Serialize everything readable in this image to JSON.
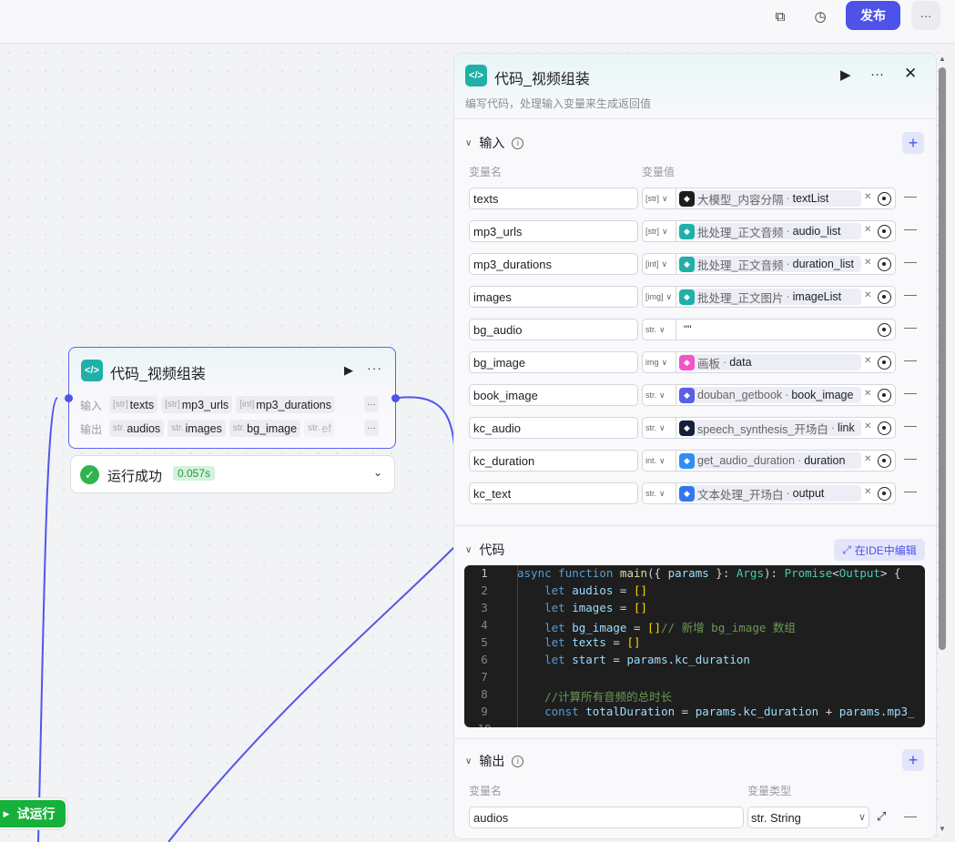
{
  "topbar": {
    "publish_label": "发布",
    "icons": [
      "copy-icon",
      "history-icon",
      "more-icon"
    ]
  },
  "node": {
    "title": "代码_视频组装",
    "input_label": "输入",
    "output_label": "输出",
    "inputs": [
      {
        "type": "[str]",
        "name": "texts"
      },
      {
        "type": "[str]",
        "name": "mp3_urls"
      },
      {
        "type": "[int]",
        "name": "mp3_durations"
      }
    ],
    "outputs": [
      {
        "type": "str.",
        "name": "audios"
      },
      {
        "type": "str.",
        "name": "images"
      },
      {
        "type": "str.",
        "name": "bg_image"
      },
      {
        "type": "str.",
        "name": "ef"
      }
    ],
    "status": {
      "text": "运行成功",
      "time": "0.057s"
    }
  },
  "trial_run_label": "试运行",
  "panel": {
    "title": "代码_视频组装",
    "description": "编写代码，处理输入变量来生成返回值",
    "input_section": {
      "title": "输入",
      "col_name": "变量名",
      "col_value": "变量值",
      "rows": [
        {
          "name": "texts",
          "type": "[str]",
          "node": "大模型_内容分隔",
          "var": "textList",
          "icon_color": "#1c1c1c"
        },
        {
          "name": "mp3_urls",
          "type": "[str]",
          "node": "批处理_正文音频",
          "var": "audio_list",
          "icon_color": "#1fb0a8"
        },
        {
          "name": "mp3_durations",
          "type": "[int]",
          "node": "批处理_正文音频",
          "var": "duration_list",
          "icon_color": "#1fb0a8"
        },
        {
          "name": "images",
          "type": "[img]",
          "node": "批处理_正文图片",
          "var": "imageList",
          "icon_color": "#1fb0a8"
        },
        {
          "name": "bg_audio",
          "type": "str.",
          "literal": "\"\""
        },
        {
          "name": "bg_image",
          "type": "img",
          "node": "画板",
          "var": "data",
          "icon_color": "#f553c8"
        },
        {
          "name": "book_image",
          "type": "str.",
          "node": "douban_getbook",
          "var": "book_image",
          "icon_color": "#5b5ee8"
        },
        {
          "name": "kc_audio",
          "type": "str.",
          "node": "speech_synthesis_开场白",
          "var": "link",
          "icon_color": "#15213a"
        },
        {
          "name": "kc_duration",
          "type": "int.",
          "node": "get_audio_duration",
          "var": "duration",
          "icon_color": "#2f8ff0"
        },
        {
          "name": "kc_text",
          "type": "str.",
          "node": "文本处理_开场白",
          "var": "output",
          "icon_color": "#3377f0"
        }
      ]
    },
    "code_section": {
      "title": "代码",
      "ide_label": "在IDE中编辑",
      "lines": [
        "async function main({ params }: Args): Promise<Output> {",
        "    let audios = []",
        "    let images = []",
        "    let bg_image = []// 新增 bg_image 数组",
        "    let texts = []",
        "    let start = params.kc_duration",
        "",
        "    //计算所有音频的总时长",
        "    const totalDuration = params.kc_duration + params.mp3_"
      ]
    },
    "output_section": {
      "title": "输出",
      "col_name": "变量名",
      "col_type": "变量类型",
      "rows": [
        {
          "name": "audios",
          "type": "str. String"
        }
      ]
    }
  }
}
